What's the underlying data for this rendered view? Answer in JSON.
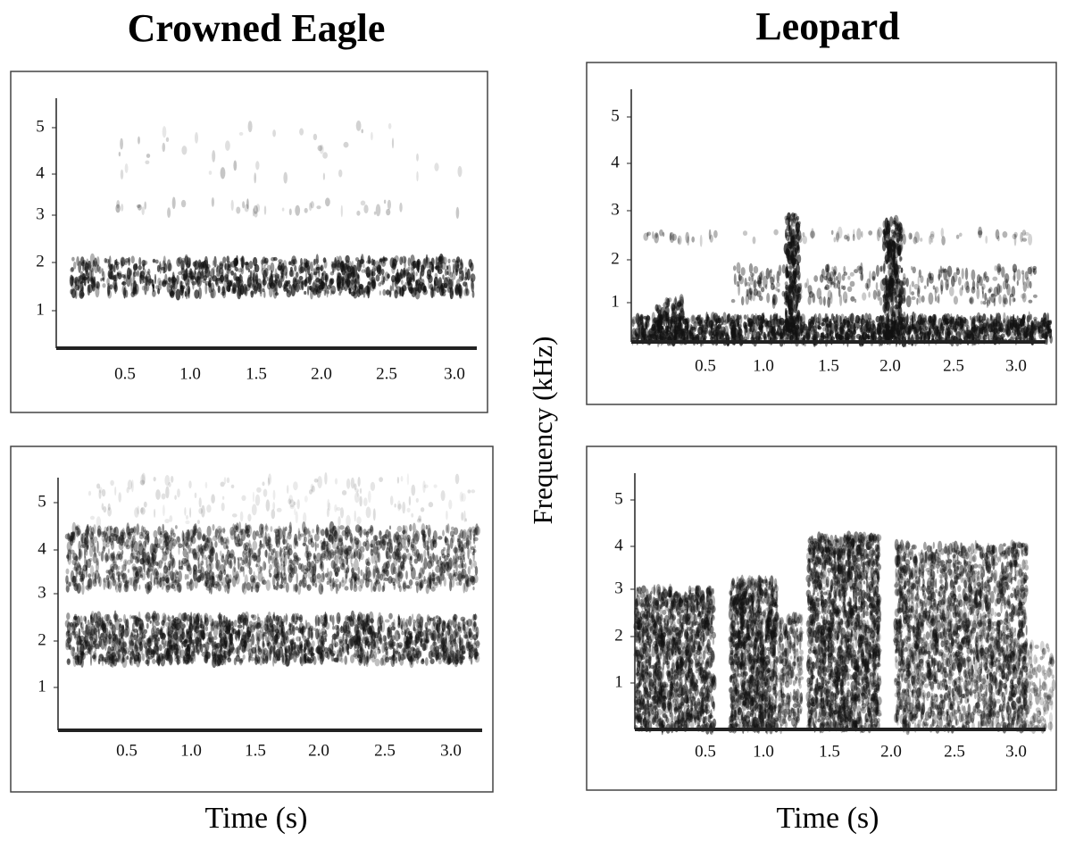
{
  "y_label": "Frequency (kHz)",
  "columns": [
    {
      "title": "Crowned Eagle",
      "x_label": "Time (s)",
      "panels": [
        {
          "y_ticks": [
            "5",
            "4",
            "3",
            "2",
            "1"
          ],
          "x_ticks": [
            "0.5",
            "1.0",
            "1.5",
            "2.0",
            "2.5",
            "3.0"
          ]
        },
        {
          "y_ticks": [
            "5",
            "4",
            "3",
            "2",
            "1"
          ],
          "x_ticks": [
            "0.5",
            "1.0",
            "1.5",
            "2.0",
            "2.5",
            "3.0"
          ]
        }
      ]
    },
    {
      "title": "Leopard",
      "x_label": "Time (s)",
      "panels": [
        {
          "y_ticks": [
            "5",
            "4",
            "3",
            "2",
            "1"
          ],
          "x_ticks": [
            "0.5",
            "1.0",
            "1.5",
            "2.0",
            "2.5",
            "3.0"
          ]
        },
        {
          "y_ticks": [
            "5",
            "4",
            "3",
            "2",
            "1"
          ],
          "x_ticks": [
            "0.5",
            "1.0",
            "1.5",
            "2.0",
            "2.5",
            "3.0"
          ]
        }
      ]
    }
  ]
}
